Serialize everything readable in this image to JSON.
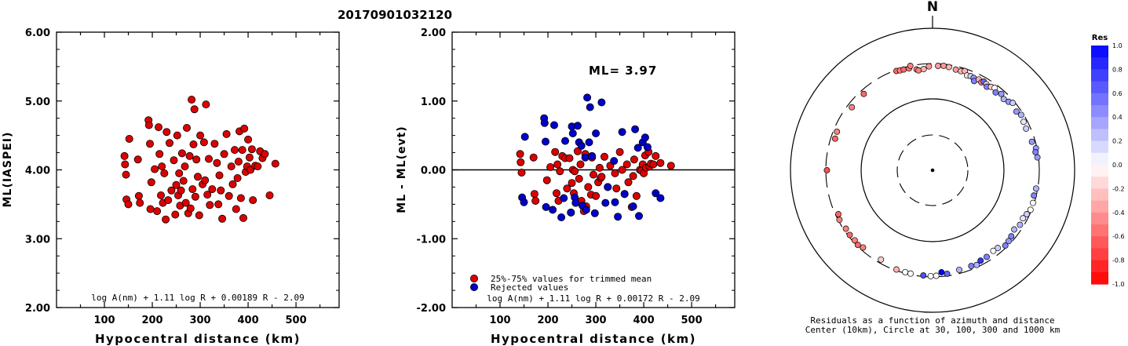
{
  "title": "20170901032120",
  "chart_data": [
    {
      "type": "scatter",
      "xlabel": "Hypocentral distance (km)",
      "ylabel": "ML(IASPEI)",
      "xlim": [
        0,
        590
      ],
      "ylim": [
        2.0,
        6.0
      ],
      "xticks": [
        "100",
        "200",
        "300",
        "400",
        "500"
      ],
      "yticks": [
        "2.00",
        "3.00",
        "4.00",
        "5.00",
        "6.00"
      ],
      "formula": "log A(nm) + 1.11 log R + 0.00189 R - 2.09",
      "grid": false,
      "series": [
        {
          "color": "#dd0000",
          "x": [
            142,
            143,
            145,
            146,
            150,
            152,
            170,
            172,
            174,
            192,
            193,
            195,
            196,
            198,
            205,
            210,
            213,
            215,
            218,
            220,
            222,
            225,
            228,
            230,
            233,
            236,
            240,
            245,
            248,
            250,
            252,
            254,
            256,
            258,
            260,
            262,
            265,
            268,
            270,
            272,
            275,
            278,
            280,
            282,
            284,
            286,
            288,
            290,
            292,
            295,
            298,
            300,
            305,
            308,
            310,
            312,
            315,
            318,
            320,
            325,
            330,
            335,
            338,
            340,
            343,
            346,
            350,
            355,
            360,
            365,
            368,
            372,
            375,
            378,
            380,
            382,
            385,
            388,
            390,
            392,
            395,
            398,
            400,
            403,
            405,
            408,
            410,
            415,
            420,
            425,
            430,
            435,
            445,
            457
          ],
          "y": [
            4.2,
            4.08,
            3.93,
            3.57,
            3.5,
            4.45,
            4.15,
            3.62,
            3.52,
            4.72,
            4.65,
            4.38,
            3.43,
            3.82,
            4.01,
            3.4,
            4.62,
            4.23,
            3.63,
            4.05,
            3.52,
            3.95,
            3.28,
            4.55,
            3.56,
            4.39,
            3.7,
            4.14,
            3.35,
            3.78,
            4.5,
            3.63,
            3.95,
            3.48,
            3.7,
            4.24,
            3.84,
            4.05,
            3.52,
            4.61,
            3.37,
            4.2,
            3.44,
            5.02,
            3.72,
            4.37,
            4.88,
            3.61,
            4.15,
            3.9,
            3.34,
            4.5,
            3.79,
            4.4,
            3.85,
            4.95,
            3.64,
            4.16,
            3.49,
            3.72,
            4.38,
            4.1,
            3.5,
            3.92,
            3.7,
            3.29,
            4.23,
            4.52,
            3.62,
            4.05,
            3.79,
            4.29,
            3.43,
            3.88,
            4.12,
            4.56,
            3.59,
            4.29,
            3.3,
            4.6,
            3.97,
            4.05,
            4.44,
            4.18,
            4.0,
            4.3,
            3.56,
            4.06,
            4.05,
            4.27,
            4.17,
            4.23,
            3.63,
            4.09
          ]
        }
      ]
    },
    {
      "type": "scatter",
      "xlabel": "Hypocentral distance (km)",
      "ylabel": "ML - ML(evt)",
      "xlim": [
        0,
        590
      ],
      "ylim": [
        -2.0,
        2.0
      ],
      "xticks": [
        "100",
        "200",
        "300",
        "400",
        "500"
      ],
      "yticks": [
        "-2.00",
        "-1.00",
        "0.00",
        "1.00",
        "2.00"
      ],
      "annotation": "ML= 3.97",
      "formula": "log A(nm) + 1.11 log R + 0.00172 R - 2.09",
      "zero_line": true,
      "grid": false,
      "legend": {
        "position": "bottom-left",
        "items": [
          {
            "label": "25%-75% values for trimmed mean",
            "color": "#dd0000"
          },
          {
            "label": "Rejected values",
            "color": "#0000cc"
          }
        ]
      },
      "series": [
        {
          "name": "25%-75% values for trimmed mean",
          "color": "#dd0000",
          "x": [
            142,
            143,
            145,
            170,
            172,
            174,
            198,
            205,
            215,
            218,
            220,
            222,
            225,
            230,
            236,
            240,
            245,
            248,
            250,
            252,
            254,
            256,
            258,
            262,
            265,
            268,
            270,
            275,
            278,
            280,
            284,
            290,
            292,
            295,
            300,
            305,
            308,
            310,
            312,
            318,
            325,
            330,
            340,
            343,
            350,
            355,
            360,
            365,
            368,
            375,
            378,
            380,
            385,
            392,
            395,
            398,
            400,
            403,
            405,
            410,
            412,
            415,
            420,
            425,
            435,
            457
          ],
          "y": [
            0.23,
            0.11,
            -0.04,
            0.18,
            -0.35,
            -0.45,
            -0.15,
            0.04,
            0.26,
            -0.34,
            0.08,
            -0.45,
            -0.02,
            0.2,
            0.17,
            -0.27,
            0.17,
            -0.62,
            -0.19,
            0.0,
            -0.34,
            -0.02,
            -0.48,
            0.27,
            -0.13,
            0.08,
            -0.45,
            -0.6,
            0.23,
            -0.53,
            -0.25,
            -0.36,
            0.18,
            -0.07,
            -0.38,
            -0.18,
            0.03,
            -0.12,
            -0.1,
            0.19,
            -0.25,
            0.06,
            -0.05,
            -0.27,
            0.26,
            0.0,
            -0.35,
            0.08,
            -0.18,
            -0.54,
            -0.09,
            0.15,
            -0.38,
            0.0,
            -0.01,
            0.08,
            -0.05,
            0.21,
            0.03,
            0.26,
            0.05,
            0.09,
            0.08,
            0.2,
            0.1,
            0.06
          ]
        },
        {
          "name": "Rejected values",
          "color": "#0000cc",
          "x": [
            146,
            150,
            152,
            192,
            193,
            195,
            196,
            210,
            213,
            228,
            233,
            236,
            248,
            250,
            252,
            256,
            258,
            262,
            265,
            270,
            272,
            278,
            280,
            282,
            286,
            288,
            292,
            298,
            300,
            312,
            320,
            325,
            338,
            340,
            346,
            355,
            360,
            378,
            382,
            388,
            390,
            398,
            403,
            408,
            425,
            435
          ],
          "y": [
            -0.4,
            -0.47,
            0.48,
            0.75,
            0.68,
            0.41,
            -0.54,
            -0.58,
            0.65,
            -0.69,
            -0.41,
            0.42,
            -0.62,
            0.63,
            0.53,
            -0.4,
            -0.48,
            0.64,
            0.4,
            0.35,
            -0.52,
            0.18,
            -0.58,
            1.05,
            0.4,
            0.91,
            0.2,
            -0.63,
            0.53,
            0.98,
            -0.48,
            -0.25,
            0.13,
            -0.47,
            -0.68,
            0.55,
            -0.35,
            -0.53,
            0.59,
            0.32,
            -0.67,
            0.4,
            0.47,
            0.33,
            -0.34,
            -0.41
          ]
        }
      ]
    },
    {
      "type": "scatter",
      "subtype": "polar residual map",
      "north_label": "N",
      "caption_lines": [
        "Residuals as a function of azimuth and distance",
        "Center (10km), Circle at 30, 100, 300 and 1000 km"
      ],
      "circles_km": [
        30,
        100,
        300,
        1000
      ],
      "colorbar": {
        "title": "Res",
        "ticks": [
          "1.0",
          "0.8",
          "0.6",
          "0.4",
          "0.2",
          "0.0",
          "-0.2",
          "-0.4",
          "-0.6",
          "-0.8",
          "-1.0"
        ],
        "min": -1.0,
        "max": 1.0,
        "positive_color": "#0000ff",
        "negative_color": "#ff0000"
      },
      "stations": [
        {
          "az": -20,
          "d": 290,
          "r": -0.6
        },
        {
          "az": -18,
          "d": 285,
          "r": -0.5
        },
        {
          "az": -16,
          "d": 283,
          "r": -0.6
        },
        {
          "az": -13,
          "d": 280,
          "r": -0.5
        },
        {
          "az": -12,
          "d": 300,
          "r": -0.5
        },
        {
          "az": -9,
          "d": 260,
          "r": -0.5
        },
        {
          "az": -8,
          "d": 250,
          "r": -0.5
        },
        {
          "az": -5,
          "d": 255,
          "r": -0.3
        },
        {
          "az": -2,
          "d": 275,
          "r": -0.4
        },
        {
          "az": 3,
          "d": 280,
          "r": -0.4
        },
        {
          "az": 6,
          "d": 285,
          "r": -0.4
        },
        {
          "az": 9,
          "d": 280,
          "r": -0.3
        },
        {
          "az": 13,
          "d": 270,
          "r": -0.4
        },
        {
          "az": 16,
          "d": 268,
          "r": -0.3
        },
        {
          "az": 18,
          "d": 278,
          "r": -0.3
        },
        {
          "az": 20,
          "d": 250,
          "r": -0.1
        },
        {
          "az": 22,
          "d": 255,
          "r": 0.2
        },
        {
          "az": 24,
          "d": 252,
          "r": 0.4
        },
        {
          "az": 25,
          "d": 232,
          "r": 0.5
        },
        {
          "az": 27,
          "d": 258,
          "r": -0.3
        },
        {
          "az": 29,
          "d": 248,
          "r": -0.5
        },
        {
          "az": 30,
          "d": 262,
          "r": 0.6
        },
        {
          "az": 32,
          "d": 255,
          "r": -0.2
        },
        {
          "az": 33,
          "d": 240,
          "r": 0.5
        },
        {
          "az": 35,
          "d": 258,
          "r": -0.2
        },
        {
          "az": 37,
          "d": 268,
          "r": 0.0
        },
        {
          "az": 39,
          "d": 245,
          "r": 0.5
        },
        {
          "az": 42,
          "d": 265,
          "r": 0.4
        },
        {
          "az": 45,
          "d": 248,
          "r": 0.3
        },
        {
          "az": 48,
          "d": 262,
          "r": 0.4
        },
        {
          "az": 50,
          "d": 282,
          "r": 0.2
        },
        {
          "az": 55,
          "d": 262,
          "r": 0.4
        },
        {
          "az": 58,
          "d": 280,
          "r": 0.3
        },
        {
          "az": 62,
          "d": 268,
          "r": 0.1
        },
        {
          "az": 66,
          "d": 262,
          "r": 0.2
        },
        {
          "az": 74,
          "d": 270,
          "r": 0.4
        },
        {
          "az": 78,
          "d": 290,
          "r": 0.4
        },
        {
          "az": 80,
          "d": 280,
          "r": 0.5
        },
        {
          "az": 83,
          "d": 290,
          "r": 0.4
        },
        {
          "az": 100,
          "d": 285,
          "r": 0.3
        },
        {
          "az": 104,
          "d": 280,
          "r": 0.5
        },
        {
          "az": 108,
          "d": 290,
          "r": 0.0
        },
        {
          "az": 112,
          "d": 290,
          "r": 0.0
        },
        {
          "az": 115,
          "d": 275,
          "r": 0.2
        },
        {
          "az": 118,
          "d": 262,
          "r": 0.1
        },
        {
          "az": 122,
          "d": 268,
          "r": 0.3
        },
        {
          "az": 126,
          "d": 250,
          "r": 0.3
        },
        {
          "az": 130,
          "d": 265,
          "r": 0.5
        },
        {
          "az": 133,
          "d": 275,
          "r": 0.4
        },
        {
          "az": 136,
          "d": 282,
          "r": 0.5
        },
        {
          "az": 140,
          "d": 255,
          "r": 0.2
        },
        {
          "az": 143,
          "d": 250,
          "r": 0.0
        },
        {
          "az": 148,
          "d": 260,
          "r": 0.5
        },
        {
          "az": 152,
          "d": 262,
          "r": 0.8
        },
        {
          "az": 155,
          "d": 280,
          "r": 0.3
        },
        {
          "az": 158,
          "d": 270,
          "r": 0.5
        },
        {
          "az": 165,
          "d": 268,
          "r": 0.3
        },
        {
          "az": 172,
          "d": 280,
          "r": 0.6
        },
        {
          "az": 175,
          "d": 262,
          "r": 1.0
        },
        {
          "az": 178,
          "d": 290,
          "r": 0.0
        },
        {
          "az": 181,
          "d": 292,
          "r": 0.0
        },
        {
          "az": 185,
          "d": 290,
          "r": 0.7
        },
        {
          "az": 192,
          "d": 290,
          "r": 0.0
        },
        {
          "az": 195,
          "d": 288,
          "r": 0.0
        },
        {
          "az": 200,
          "d": 290,
          "r": -0.3
        },
        {
          "az": 210,
          "d": 268,
          "r": -0.2
        },
        {
          "az": 222,
          "d": 275,
          "r": -0.5
        },
        {
          "az": 225,
          "d": 290,
          "r": -0.6
        },
        {
          "az": 228,
          "d": 282,
          "r": -0.5
        },
        {
          "az": 232,
          "d": 285,
          "r": -0.6
        },
        {
          "az": 236,
          "d": 280,
          "r": -0.5
        },
        {
          "az": 242,
          "d": 288,
          "r": -0.5
        },
        {
          "az": 245,
          "d": 275,
          "r": -0.6
        },
        {
          "az": 270,
          "d": 290,
          "r": -0.7
        },
        {
          "az": 288,
          "d": 262,
          "r": -0.6
        },
        {
          "az": 292,
          "d": 268,
          "r": -0.5
        },
        {
          "az": 308,
          "d": 262,
          "r": -0.5
        },
        {
          "az": 318,
          "d": 265,
          "r": -0.6
        }
      ]
    }
  ]
}
